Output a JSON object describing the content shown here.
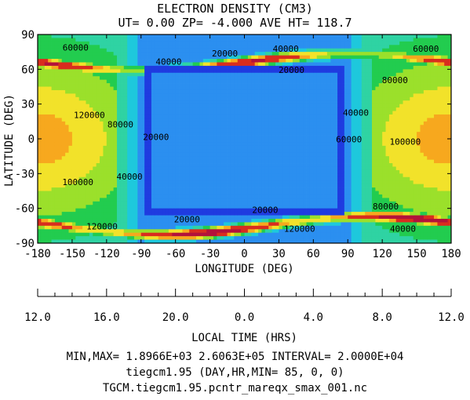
{
  "title_line1": "ELECTRON DENSITY (CM3)",
  "title_line2": "UT= 0.00 ZP= -4.000 AVE HT= 118.7",
  "footer": {
    "minmax": "MIN,MAX=  1.8966E+03  2.6063E+05 INTERVAL=  2.0000E+04",
    "model": "tiegcm1.95  (DAY,HR,MIN= 85, 0, 0)",
    "file": "TGCM.tiegcm1.95.pcntr_mareqx_smax_001.nc"
  },
  "chart_data": {
    "type": "heatmap",
    "title": "ELECTRON DENSITY (CM3)",
    "subtitle": "UT= 0.00 ZP= -4.000 AVE HT= 118.7",
    "xlabel": "LONGITUDE (DEG)",
    "ylabel": "LATITUDE (DEG)",
    "x2label": "LOCAL TIME (HRS)",
    "xlim": [
      -180,
      180
    ],
    "ylim": [
      -90,
      90
    ],
    "x_ticks": [
      -180,
      -150,
      -120,
      -90,
      -60,
      -30,
      0,
      30,
      60,
      90,
      120,
      150,
      180
    ],
    "y_ticks": [
      90,
      60,
      30,
      0,
      -30,
      -60,
      -90
    ],
    "x2_tick_labels": [
      "12.0",
      "16.0",
      "20.0",
      "0.0",
      "4.0",
      "8.0",
      "12.0"
    ],
    "contour_interval": 20000,
    "min": 1896.6,
    "max": 260630,
    "contour_labels": [
      {
        "text": "60000",
        "lon": -147,
        "lat": 78
      },
      {
        "text": "40000",
        "lon": -66,
        "lat": 66
      },
      {
        "text": "20000",
        "lon": -17,
        "lat": 73
      },
      {
        "text": "40000",
        "lon": 36,
        "lat": 77
      },
      {
        "text": "60000",
        "lon": 158,
        "lat": 77
      },
      {
        "text": "20000",
        "lon": 41,
        "lat": 59
      },
      {
        "text": "120000",
        "lon": -135,
        "lat": 20
      },
      {
        "text": "80000",
        "lon": -108,
        "lat": 12
      },
      {
        "text": "20000",
        "lon": -77,
        "lat": 1
      },
      {
        "text": "40000",
        "lon": -100,
        "lat": -33
      },
      {
        "text": "100000",
        "lon": -145,
        "lat": -38
      },
      {
        "text": "40000",
        "lon": 97,
        "lat": 22
      },
      {
        "text": "60000",
        "lon": 91,
        "lat": -1
      },
      {
        "text": "80000",
        "lon": 131,
        "lat": 50
      },
      {
        "text": "100000",
        "lon": 140,
        "lat": -3
      },
      {
        "text": "20000",
        "lon": 18,
        "lat": -62
      },
      {
        "text": "20000",
        "lon": -50,
        "lat": -70
      },
      {
        "text": "120000",
        "lon": -124,
        "lat": -76
      },
      {
        "text": "80000",
        "lon": 123,
        "lat": -59
      },
      {
        "text": "120000",
        "lon": 48,
        "lat": -78
      },
      {
        "text": "40000",
        "lon": 138,
        "lat": -78
      }
    ],
    "color_levels": [
      {
        "max": 20000,
        "color": "#1f3be0"
      },
      {
        "max": 40000,
        "color": "#2b8ff0"
      },
      {
        "max": 60000,
        "color": "#1ec8dc"
      },
      {
        "max": 80000,
        "color": "#2fd3a3"
      },
      {
        "max": 100000,
        "color": "#22cc4f"
      },
      {
        "max": 120000,
        "color": "#9be02b"
      },
      {
        "max": 140000,
        "color": "#f2e22a"
      },
      {
        "max": 160000,
        "color": "#f7a81e"
      },
      {
        "max": 200000,
        "color": "#d92d1e"
      },
      {
        "max": 240000,
        "color": "#b3123b"
      },
      {
        "max": 300000,
        "color": "#d13bd3"
      }
    ]
  }
}
